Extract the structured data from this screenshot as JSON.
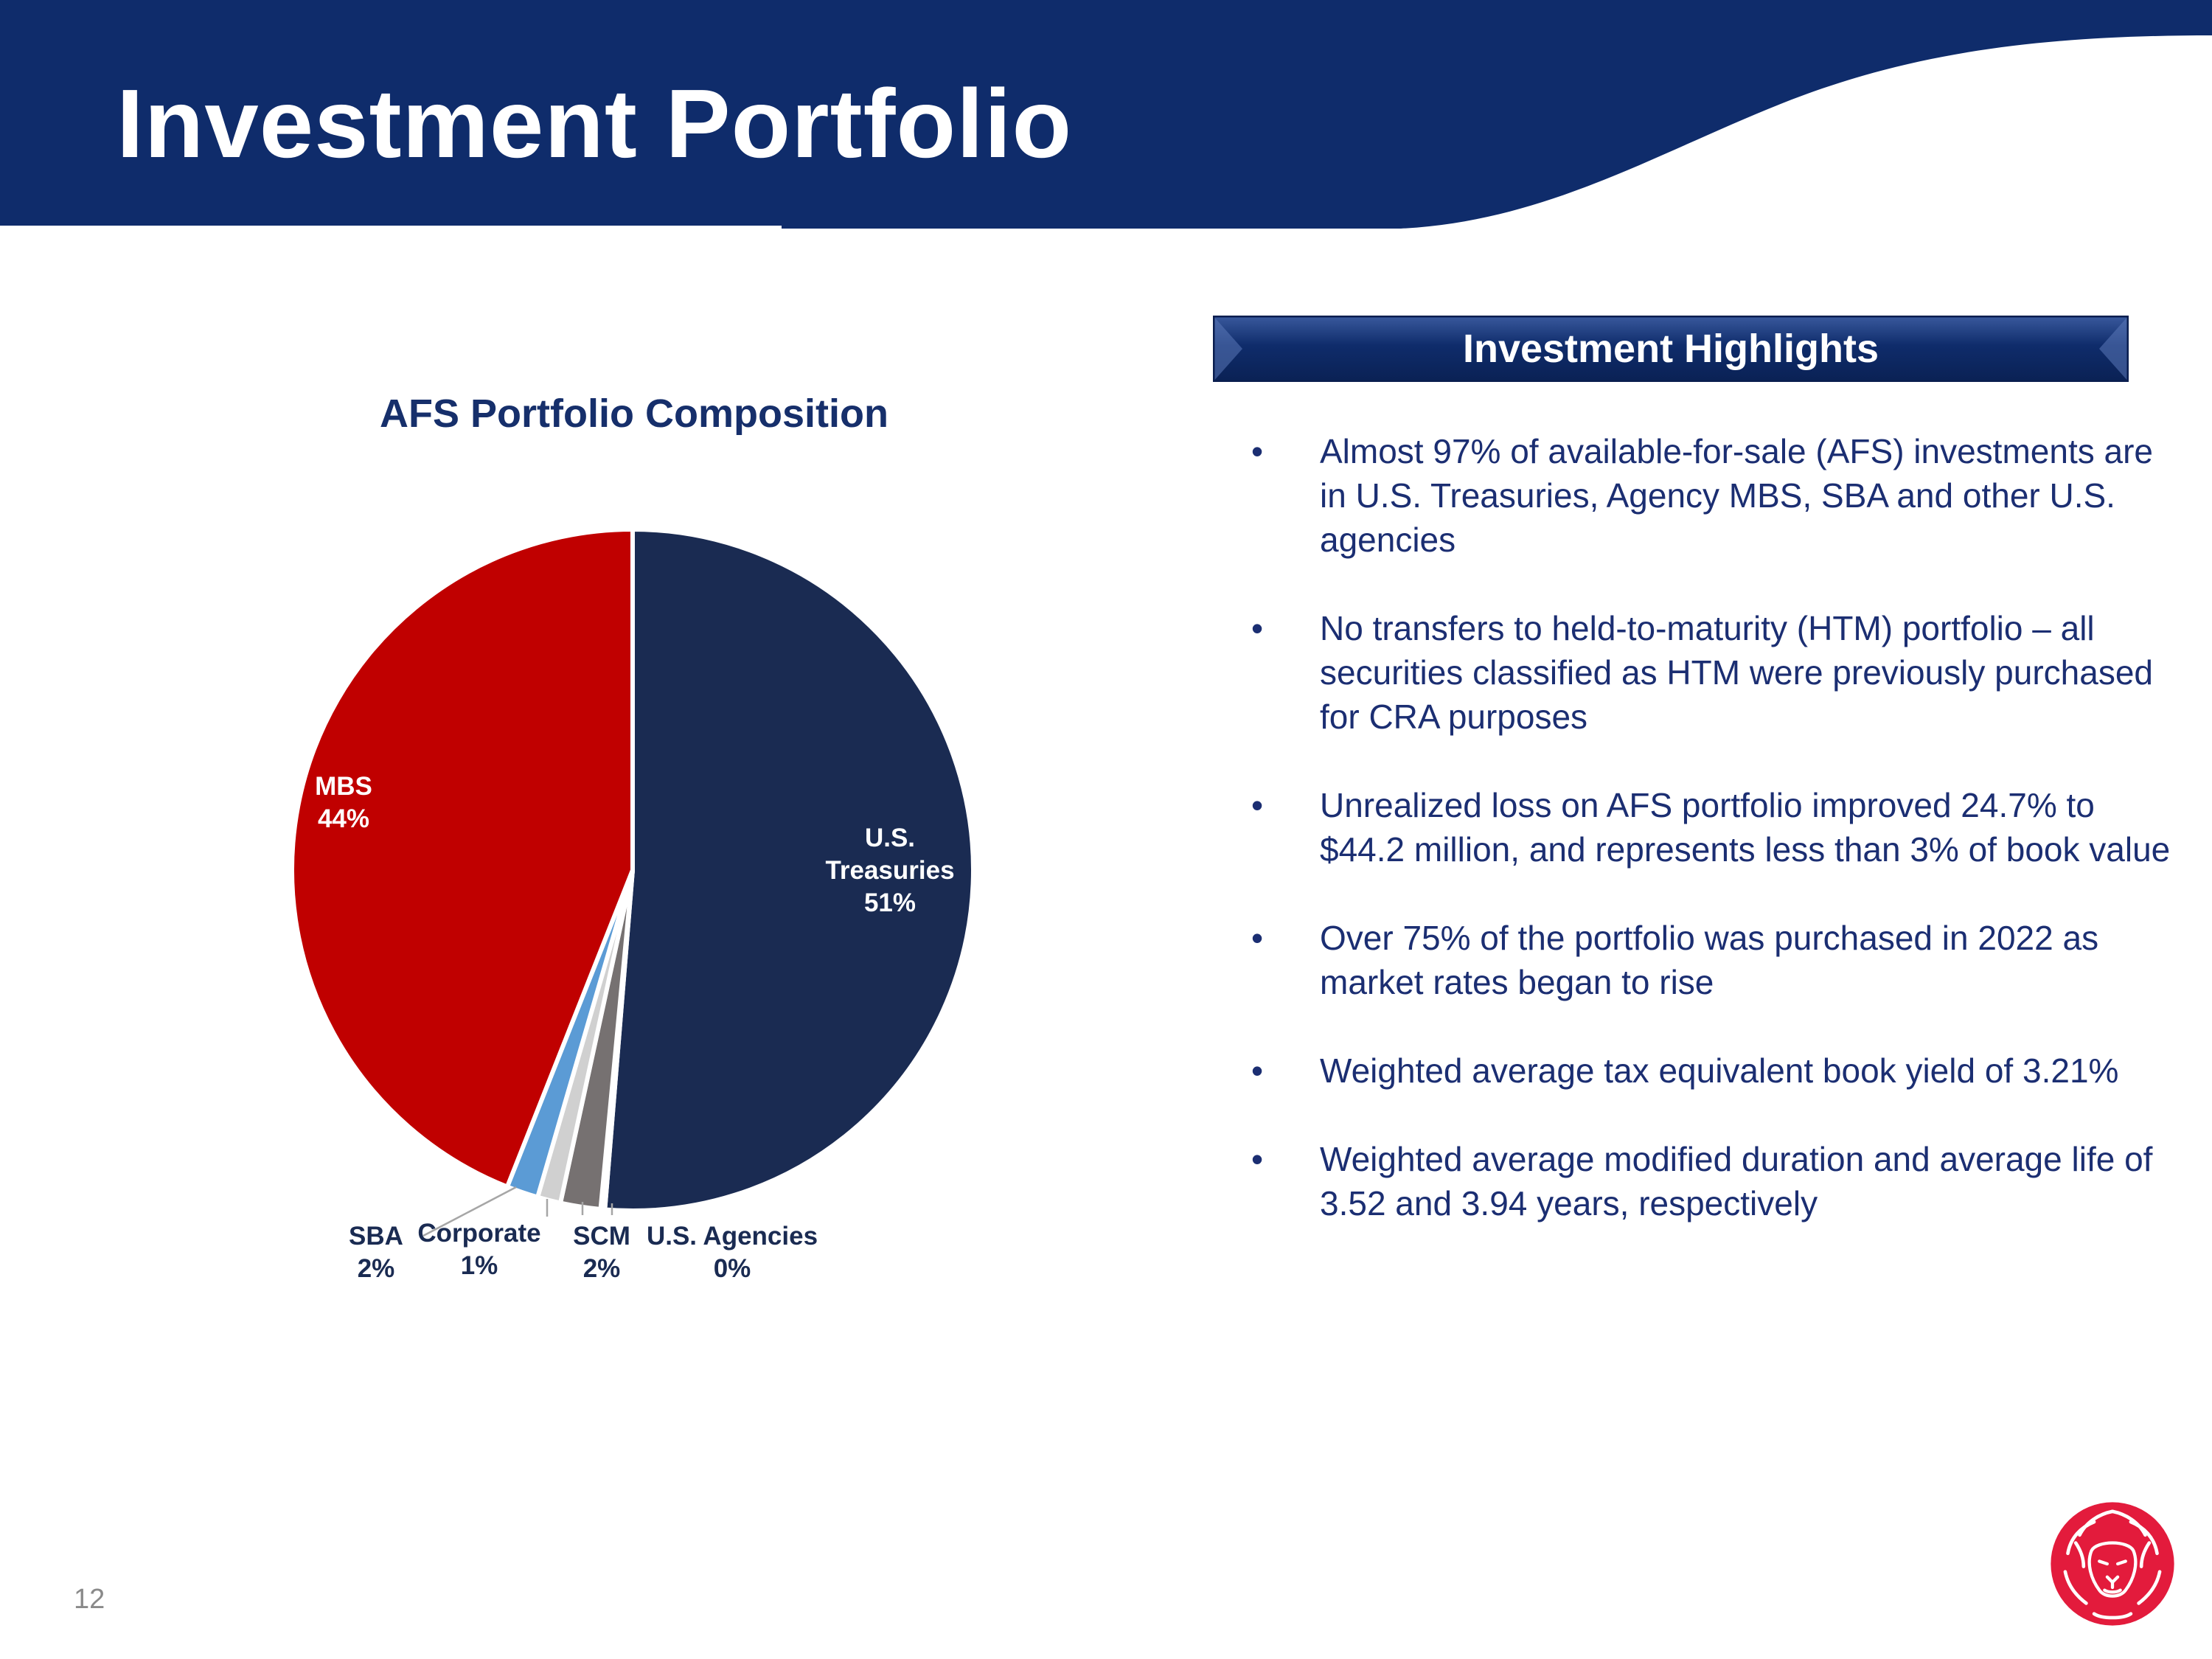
{
  "page": {
    "title": "Investment Portfolio",
    "page_number": "12"
  },
  "colors": {
    "navy": "#0f2c6b",
    "mbs_red": "#c00000",
    "treasury_navy": "#1a2b52",
    "sba_blue": "#5b9bd5",
    "corporate_gray": "#c8c8c8",
    "scm_gray": "#767171",
    "brand_red": "#e31b3c"
  },
  "chart_data": {
    "type": "pie",
    "title": "AFS Portfolio Composition",
    "slices": [
      {
        "name": "U.S. Treasuries",
        "label_lines": [
          "U.S.",
          "Treasuries",
          "51%"
        ],
        "percent": 51,
        "value": 51.3,
        "color": "#1a2b52",
        "label_color": "#ffffff",
        "placement": "inside"
      },
      {
        "name": "U.S. Agencies",
        "label_lines": [
          "U.S. Agencies",
          "0%"
        ],
        "percent": 0,
        "value": 0.2,
        "color": "#a5a5a5",
        "label_color": "#1a2b52",
        "placement": "outside"
      },
      {
        "name": "SCM",
        "label_lines": [
          "SCM",
          "2%"
        ],
        "percent": 2,
        "value": 1.9,
        "color": "#767171",
        "label_color": "#1a2b52",
        "placement": "outside"
      },
      {
        "name": "Corporate",
        "label_lines": [
          "Corporate",
          "1%"
        ],
        "percent": 1,
        "value": 1.1,
        "color": "#d0d0d0",
        "label_color": "#1a2b52",
        "placement": "outside"
      },
      {
        "name": "SBA",
        "label_lines": [
          "SBA",
          "2%"
        ],
        "percent": 2,
        "value": 1.5,
        "color": "#5b9bd5",
        "label_color": "#1a2b52",
        "placement": "outside"
      },
      {
        "name": "MBS",
        "label_lines": [
          "MBS",
          "44%"
        ],
        "percent": 44,
        "value": 44.0,
        "color": "#c00000",
        "label_color": "#ffffff",
        "placement": "inside"
      }
    ]
  },
  "highlights": {
    "title": "Investment Highlights",
    "bullet_glyph": "•",
    "items": [
      "Almost 97% of available-for-sale (AFS) investments are in U.S. Treasuries, Agency MBS, SBA and other U.S. agencies",
      "No transfers to held-to-maturity (HTM) portfolio – all securities classified as HTM were previously purchased for CRA purposes",
      "Unrealized loss on AFS portfolio improved 24.7% to $44.2 million, and represents less than 3% of book value",
      "Over 75% of the portfolio was purchased in 2022 as market rates began to rise",
      "Weighted average tax equivalent book yield of 3.21%",
      "Weighted average modified duration and average life of 3.52 and 3.94 years, respectively"
    ]
  }
}
